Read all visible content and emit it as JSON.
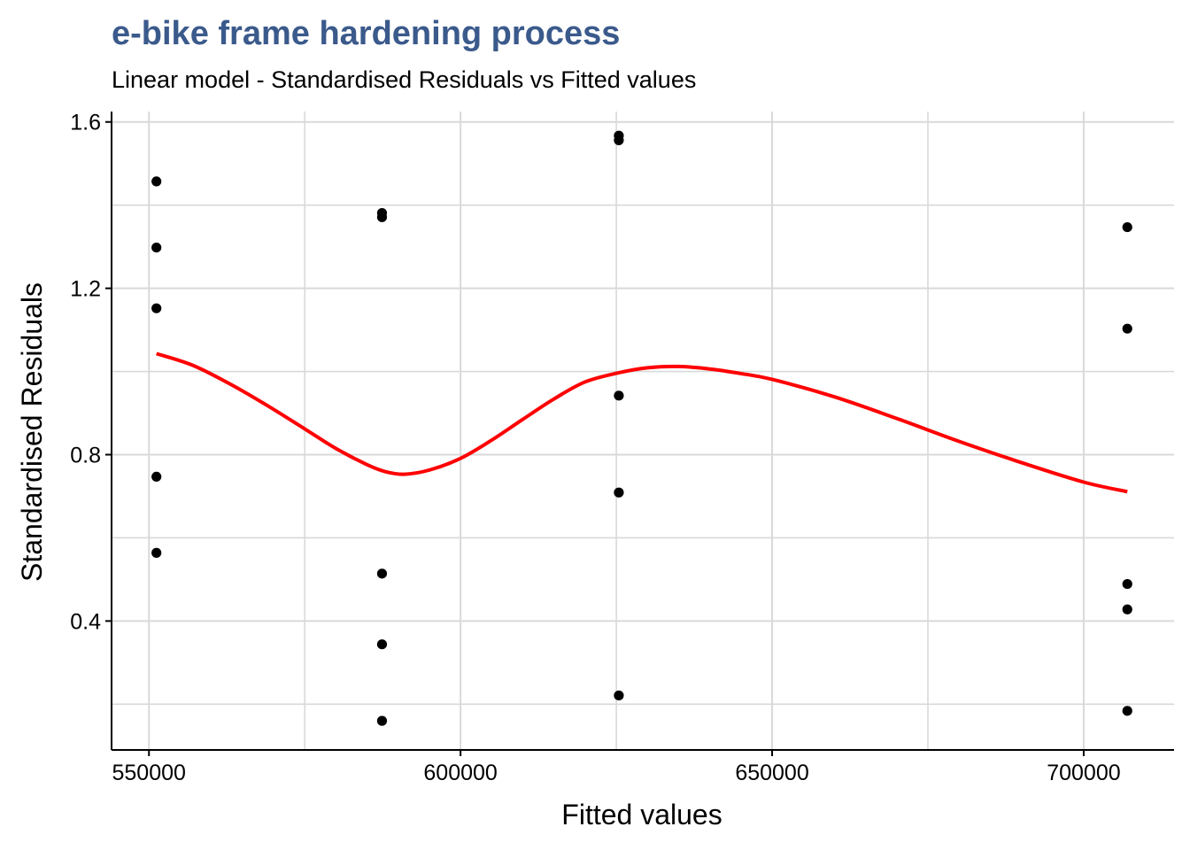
{
  "chart_data": {
    "type": "scatter",
    "title": "e-bike frame hardening process",
    "subtitle": "Linear model - Standardised Residuals vs Fitted values",
    "xlabel": "Fitted values",
    "ylabel": "Standardised Residuals",
    "xlim": [
      544000,
      714500
    ],
    "ylim": [
      0.09,
      1.625
    ],
    "x_ticks": [
      550000,
      600000,
      650000,
      700000
    ],
    "x_tick_labels": [
      "550000",
      "600000",
      "650000",
      "700000"
    ],
    "y_ticks": [
      0.4,
      0.8,
      1.2,
      1.6
    ],
    "y_tick_labels": [
      "0.4",
      "0.8",
      "1.2",
      "1.6"
    ],
    "grid": true,
    "legend": "none",
    "series": [
      {
        "type": "scatter",
        "x": [
          551200,
          551200,
          551200,
          551200,
          551200,
          587400,
          587400,
          587400,
          587400,
          587400,
          625400,
          625400,
          625400,
          625400,
          625400,
          707000,
          707000,
          707000,
          707000,
          707000
        ],
        "y": [
          1.457,
          1.298,
          1.152,
          0.747,
          0.564,
          1.381,
          1.371,
          0.514,
          0.344,
          0.16,
          1.567,
          1.556,
          0.942,
          0.709,
          0.221,
          1.347,
          1.103,
          0.489,
          0.428,
          0.184
        ]
      },
      {
        "type": "line",
        "x": [
          551200,
          557000,
          563000,
          569000,
          575000,
          580000,
          585000,
          588000,
          591000,
          595000,
          600000,
          605000,
          610000,
          615000,
          620000,
          625400,
          630000,
          635000,
          640000,
          645000,
          650000,
          660000,
          670000,
          680000,
          690000,
          700000,
          707000
        ],
        "y": [
          1.043,
          1.015,
          0.97,
          0.918,
          0.862,
          0.815,
          0.776,
          0.759,
          0.753,
          0.763,
          0.791,
          0.835,
          0.885,
          0.934,
          0.975,
          0.997,
          1.009,
          1.012,
          1.006,
          0.995,
          0.981,
          0.939,
          0.887,
          0.832,
          0.781,
          0.734,
          0.711
        ]
      }
    ],
    "colors": {
      "title": "#3b5a8c",
      "points": "#000000",
      "smooth_line": "#ff0000",
      "grid": "#d9d9d9",
      "axis": "#000000"
    }
  }
}
